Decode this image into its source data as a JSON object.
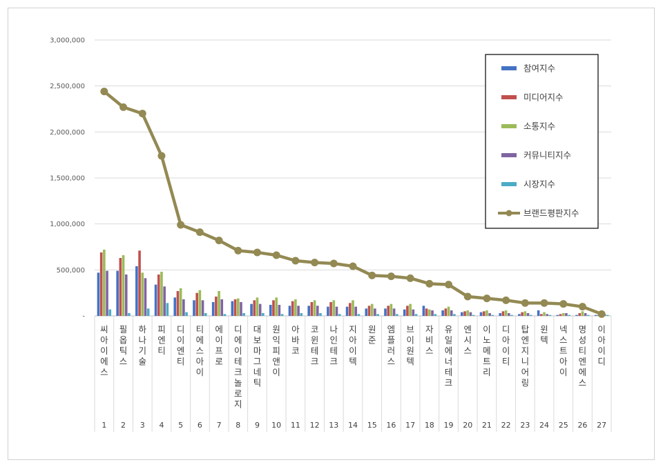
{
  "chart_data": {
    "type": "bar",
    "title": "",
    "xlabel": "",
    "ylabel": "",
    "ylim": [
      0,
      3000000
    ],
    "yticks": [
      0,
      500000,
      1000000,
      1500000,
      2000000,
      2500000,
      3000000
    ],
    "ytick_labels": [
      "-",
      "500,000",
      "1,000,000",
      "1,500,000",
      "2,000,000",
      "2,500,000",
      "3,000,000"
    ],
    "grid": true,
    "legend_position": "top-right",
    "categories": [
      "씨아이에스",
      "필옵틱스",
      "하나기술",
      "피엔티",
      "디이엔티",
      "티에스아이",
      "에이프로",
      "디에이테크놀로지",
      "대보마그네틱",
      "원익피앤이",
      "아바코",
      "코윈테크",
      "나인테크",
      "지아이텍",
      "원준",
      "엠플러스",
      "브이원텍",
      "자비스",
      "유일에너테크",
      "엔시스",
      "이노메트리",
      "디아이티",
      "탑엔지니어링",
      "윈텍",
      "넥스트아이",
      "명성티엔에스",
      "이아이디"
    ],
    "ranks": [
      "1",
      "2",
      "3",
      "4",
      "5",
      "6",
      "7",
      "8",
      "9",
      "10",
      "11",
      "12",
      "13",
      "14",
      "15",
      "16",
      "17",
      "18",
      "19",
      "20",
      "21",
      "22",
      "23",
      "24",
      "25",
      "26",
      "27"
    ],
    "series": [
      {
        "name": "참여지수",
        "type": "bar",
        "color": "#4472C4",
        "values": [
          470000,
          490000,
          540000,
          340000,
          200000,
          170000,
          150000,
          160000,
          130000,
          120000,
          110000,
          110000,
          100000,
          100000,
          80000,
          80000,
          70000,
          110000,
          60000,
          40000,
          40000,
          30000,
          20000,
          60000,
          10000,
          10000,
          10000
        ]
      },
      {
        "name": "미디어지수",
        "type": "bar",
        "color": "#C0504D",
        "values": [
          690000,
          630000,
          710000,
          450000,
          270000,
          250000,
          210000,
          180000,
          170000,
          170000,
          160000,
          150000,
          150000,
          140000,
          110000,
          110000,
          110000,
          80000,
          80000,
          50000,
          50000,
          50000,
          40000,
          20000,
          20000,
          30000,
          10000
        ]
      },
      {
        "name": "소통지수",
        "type": "bar",
        "color": "#9BBB59",
        "values": [
          720000,
          660000,
          470000,
          480000,
          300000,
          280000,
          270000,
          190000,
          200000,
          200000,
          180000,
          170000,
          170000,
          170000,
          130000,
          130000,
          130000,
          70000,
          100000,
          60000,
          60000,
          60000,
          50000,
          40000,
          30000,
          50000,
          10000
        ]
      },
      {
        "name": "커뮤니티지수",
        "type": "bar",
        "color": "#8064A2",
        "values": [
          490000,
          450000,
          410000,
          320000,
          180000,
          170000,
          180000,
          150000,
          130000,
          120000,
          110000,
          110000,
          100000,
          100000,
          80000,
          80000,
          70000,
          60000,
          60000,
          40000,
          30000,
          30000,
          30000,
          20000,
          30000,
          30000,
          20000
        ]
      },
      {
        "name": "시장지수",
        "type": "bar",
        "color": "#4BACC6",
        "values": [
          70000,
          30000,
          80000,
          140000,
          40000,
          30000,
          20000,
          30000,
          30000,
          20000,
          30000,
          30000,
          20000,
          20000,
          20000,
          20000,
          20000,
          20000,
          20000,
          10000,
          10000,
          10000,
          10000,
          10000,
          10000,
          10000,
          10000
        ]
      },
      {
        "name": "브랜드평판지수",
        "type": "line",
        "color": "#938953",
        "values": [
          2440000,
          2270000,
          2200000,
          1740000,
          990000,
          910000,
          820000,
          710000,
          690000,
          660000,
          600000,
          580000,
          570000,
          540000,
          440000,
          430000,
          410000,
          350000,
          340000,
          210000,
          190000,
          170000,
          140000,
          140000,
          130000,
          100000,
          20000
        ]
      }
    ]
  }
}
